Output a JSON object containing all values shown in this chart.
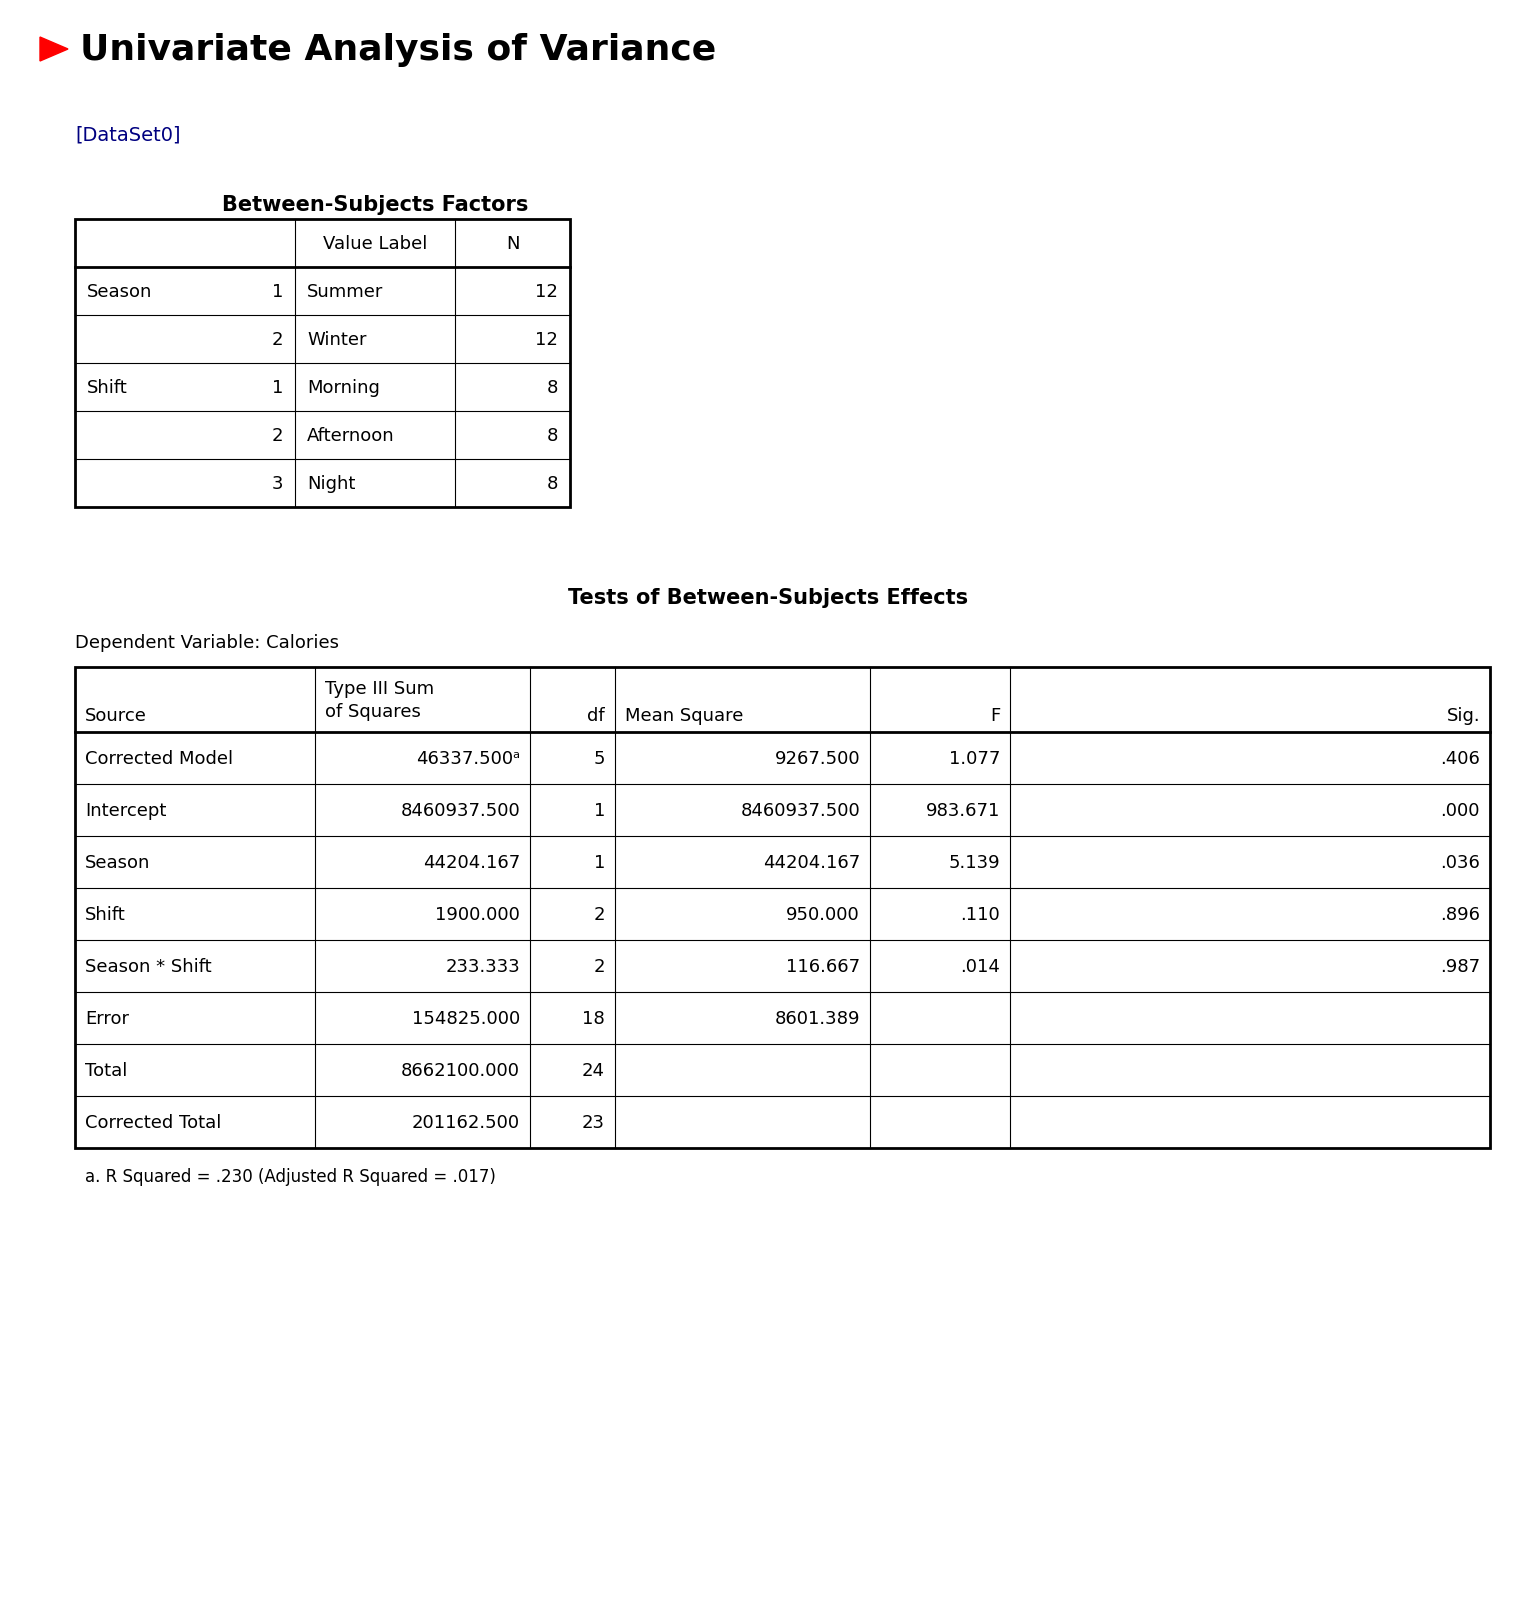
{
  "title": "Univariate Analysis of Variance",
  "dataset_label": "[DataSet0]",
  "bg_color": "#ffffff",
  "title_color": "#000000",
  "arrow_color": "#ff0000",
  "dataset_label_color": "#000080",
  "table1_title": "Between-Subjects Factors",
  "table1_rows": [
    [
      "Season",
      "1",
      "Summer",
      "12"
    ],
    [
      "",
      "2",
      "Winter",
      "12"
    ],
    [
      "Shift",
      "1",
      "Morning",
      "8"
    ],
    [
      "",
      "2",
      "Afternoon",
      "8"
    ],
    [
      "",
      "3",
      "Night",
      "8"
    ]
  ],
  "table2_title": "Tests of Between-Subjects Effects",
  "table2_dep_var": "Dependent Variable: Calories",
  "table2_rows": [
    [
      "Corrected Model",
      "46337.500ᵃ",
      "5",
      "9267.500",
      "1.077",
      ".406"
    ],
    [
      "Intercept",
      "8460937.500",
      "1",
      "8460937.500",
      "983.671",
      ".000"
    ],
    [
      "Season",
      "44204.167",
      "1",
      "44204.167",
      "5.139",
      ".036"
    ],
    [
      "Shift",
      "1900.000",
      "2",
      "950.000",
      ".110",
      ".896"
    ],
    [
      "Season * Shift",
      "233.333",
      "2",
      "116.667",
      ".014",
      ".987"
    ],
    [
      "Error",
      "154825.000",
      "18",
      "8601.389",
      "",
      ""
    ],
    [
      "Total",
      "8662100.000",
      "24",
      "",
      "",
      ""
    ],
    [
      "Corrected Total",
      "201162.500",
      "23",
      "",
      "",
      ""
    ]
  ],
  "footnote": "a. R Squared = .230 (Adjusted R Squared = .017)"
}
